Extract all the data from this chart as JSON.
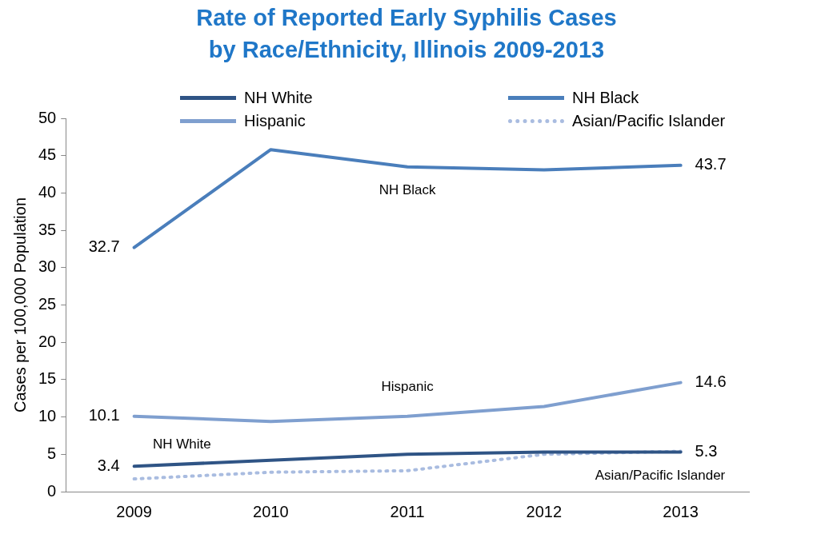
{
  "chart_data": {
    "type": "line",
    "title": [
      "Rate of Reported Early Syphilis Cases",
      "by Race/Ethnicity, Illinois 2009-2013"
    ],
    "ylabel": "Cases per 100,000 Population",
    "categories": [
      "2009",
      "2010",
      "2011",
      "2012",
      "2013"
    ],
    "series": [
      {
        "name": "NH White",
        "color": "#2f5485",
        "values": [
          3.4,
          4.2,
          5.0,
          5.3,
          5.3
        ],
        "value_labels": [
          "3.4",
          null,
          null,
          null,
          "5.3"
        ]
      },
      {
        "name": "NH Black",
        "color": "#4a7ebb",
        "values": [
          32.7,
          45.8,
          43.5,
          43.1,
          43.7
        ],
        "value_labels": [
          "32.7",
          null,
          null,
          null,
          "43.7"
        ]
      },
      {
        "name": "Hispanic",
        "color": "#7f9fcf",
        "values": [
          10.1,
          9.4,
          10.1,
          11.4,
          14.6
        ],
        "value_labels": [
          "10.1",
          null,
          null,
          null,
          "14.6"
        ]
      },
      {
        "name": "Asian/Pacific Islander",
        "color": "#a9bce0",
        "line_style": "dotted",
        "values": [
          1.7,
          2.6,
          2.8,
          5.0,
          5.4
        ]
      }
    ],
    "annotations": [
      "NH White",
      "NH Black",
      "Hispanic",
      "Asian/Pacific Islander"
    ],
    "ylim": [
      0,
      50
    ],
    "yticks": [
      0,
      5,
      10,
      15,
      20,
      25,
      30,
      35,
      40,
      45,
      50
    ],
    "grid": false,
    "legend": "top",
    "marker": "none",
    "line_style": "solid"
  }
}
